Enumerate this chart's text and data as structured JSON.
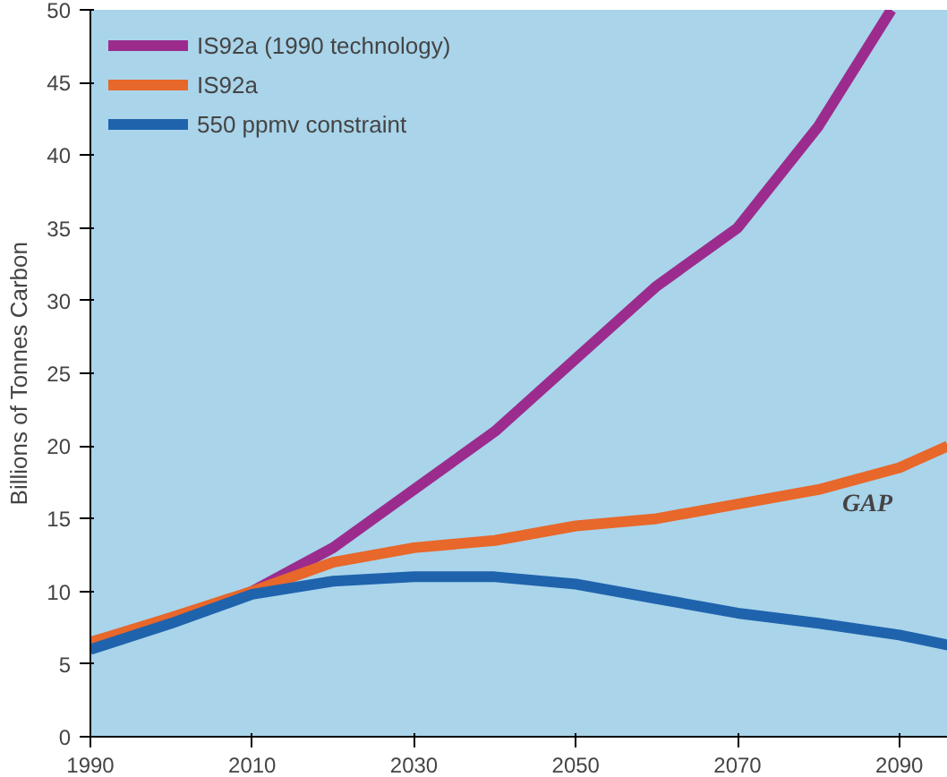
{
  "chart_data": {
    "type": "line",
    "ylabel": "Billions of Tonnes Carbon",
    "xlim": [
      1990,
      2096
    ],
    "ylim": [
      0,
      50
    ],
    "xticks": [
      1990,
      2010,
      2030,
      2050,
      2070,
      2090
    ],
    "yticks": [
      0,
      5,
      10,
      15,
      20,
      25,
      30,
      35,
      40,
      45,
      50
    ],
    "legend": "top left",
    "grid": false,
    "annotations": [
      "GAP"
    ],
    "series": [
      {
        "name": "IS92a (1990 technology)",
        "color": "#9b2c8e",
        "x": [
          1990,
          2000,
          2010,
          2020,
          2030,
          2040,
          2050,
          2060,
          2070,
          2080,
          2089
        ],
        "values": [
          6.5,
          8,
          10,
          13,
          17,
          21,
          26,
          31,
          35,
          42,
          50
        ]
      },
      {
        "name": "IS92a",
        "color": "#e8672a",
        "x": [
          1990,
          2000,
          2010,
          2020,
          2030,
          2040,
          2050,
          2060,
          2070,
          2080,
          2090,
          2096
        ],
        "values": [
          6.5,
          8.2,
          10,
          12,
          13,
          13.5,
          14.5,
          15,
          16,
          17,
          18.5,
          20
        ]
      },
      {
        "name": "550 ppmv constraint",
        "color": "#1f63ad",
        "x": [
          1990,
          2000,
          2010,
          2020,
          2030,
          2040,
          2050,
          2060,
          2070,
          2080,
          2090,
          2096
        ],
        "values": [
          6,
          7.8,
          9.8,
          10.7,
          11,
          11,
          10.5,
          9.5,
          8.5,
          7.8,
          7,
          6.3
        ]
      }
    ]
  }
}
